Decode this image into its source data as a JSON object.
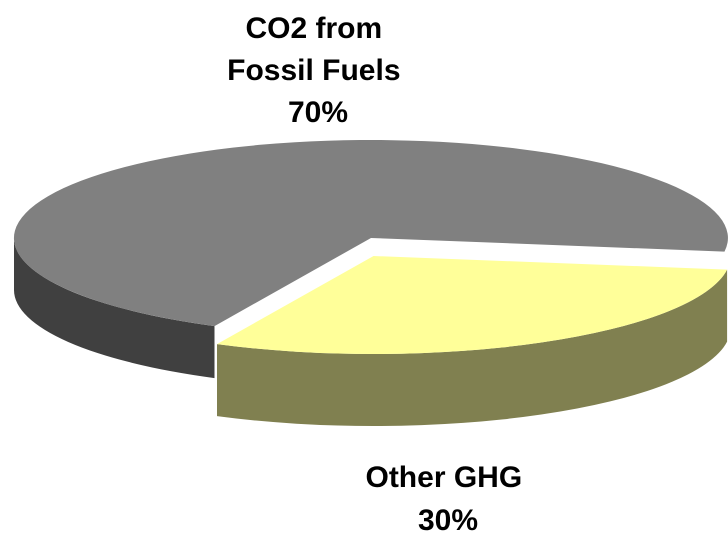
{
  "chart_data": {
    "type": "pie",
    "style": "3d-exploded",
    "slices": [
      {
        "name": "CO2 from Fossil Fuels",
        "label_lines": [
          "CO2 from",
          "Fossil Fuels",
          "70%"
        ],
        "value": 70,
        "color": "#808080",
        "side_color": "#404040"
      },
      {
        "name": "Other GHG",
        "label_lines": [
          "Other GHG",
          "30%"
        ],
        "value": 30,
        "color": "#ffff99",
        "side_color": "#808050"
      }
    ],
    "exploded_slice": "Other GHG",
    "legend": "none"
  }
}
